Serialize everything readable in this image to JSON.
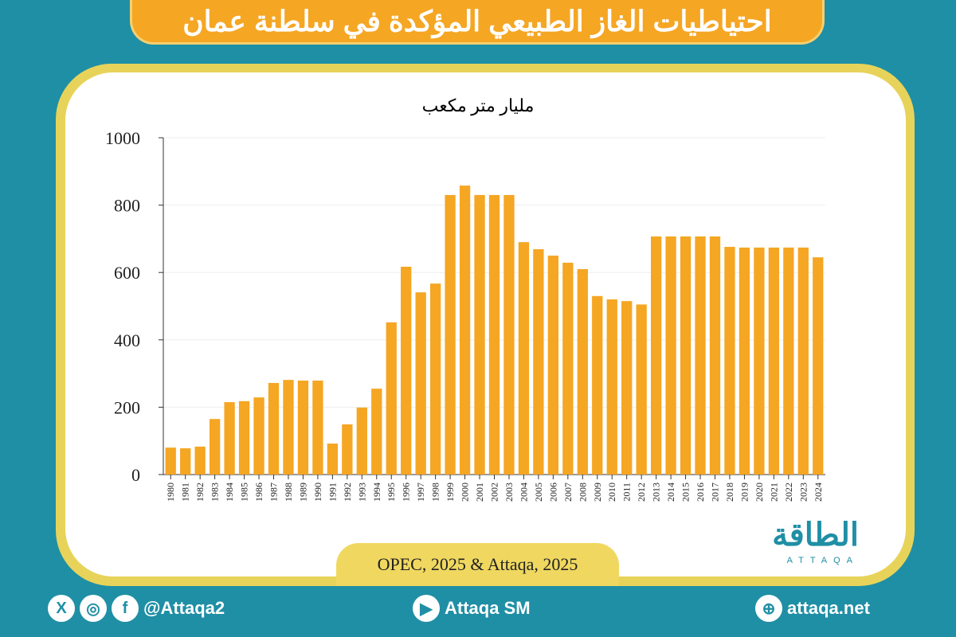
{
  "header": {
    "title": "احتياطيات الغاز الطبيعي المؤكدة في سلطنة عمان"
  },
  "chart_data": {
    "type": "bar",
    "title": "",
    "ylabel": "مليار متر مكعب",
    "xlabel": "",
    "ylim": [
      0,
      1000
    ],
    "yticks": [
      0,
      200,
      400,
      600,
      800,
      1000
    ],
    "grid": true,
    "bar_color": "#f5a623",
    "categories": [
      "1980",
      "1981",
      "1982",
      "1983",
      "1984",
      "1985",
      "1986",
      "1987",
      "1988",
      "1989",
      "1990",
      "1991",
      "1992",
      "1993",
      "1994",
      "1995",
      "1996",
      "1997",
      "1998",
      "1999",
      "2000",
      "2001",
      "2002",
      "2003",
      "2004",
      "2005",
      "2006",
      "2007",
      "2008",
      "2009",
      "2010",
      "2011",
      "2012",
      "2013",
      "2014",
      "2015",
      "2016",
      "2017",
      "2018",
      "2019",
      "2020",
      "2021",
      "2022",
      "2023",
      "2024"
    ],
    "values": [
      80,
      78,
      83,
      165,
      215,
      218,
      229,
      272,
      281,
      279,
      279,
      92,
      149,
      199,
      255,
      452,
      617,
      541,
      567,
      830,
      858,
      830,
      830,
      830,
      690,
      669,
      650,
      629,
      610,
      530,
      520,
      515,
      505,
      707,
      707,
      707,
      707,
      707,
      676,
      674,
      674,
      674,
      674,
      674,
      645
    ]
  },
  "source": "OPEC, 2025 & Attaqa, 2025",
  "logo": {
    "arabic": "الطاقة",
    "english": "ATTAQA"
  },
  "footer": {
    "social_handle": "@Attaqa2",
    "youtube": "Attaqa SM",
    "website": "attaqa.net"
  },
  "colors": {
    "background": "#1f8fa5",
    "accent": "#f5a623",
    "frame": "#e8d35a"
  }
}
